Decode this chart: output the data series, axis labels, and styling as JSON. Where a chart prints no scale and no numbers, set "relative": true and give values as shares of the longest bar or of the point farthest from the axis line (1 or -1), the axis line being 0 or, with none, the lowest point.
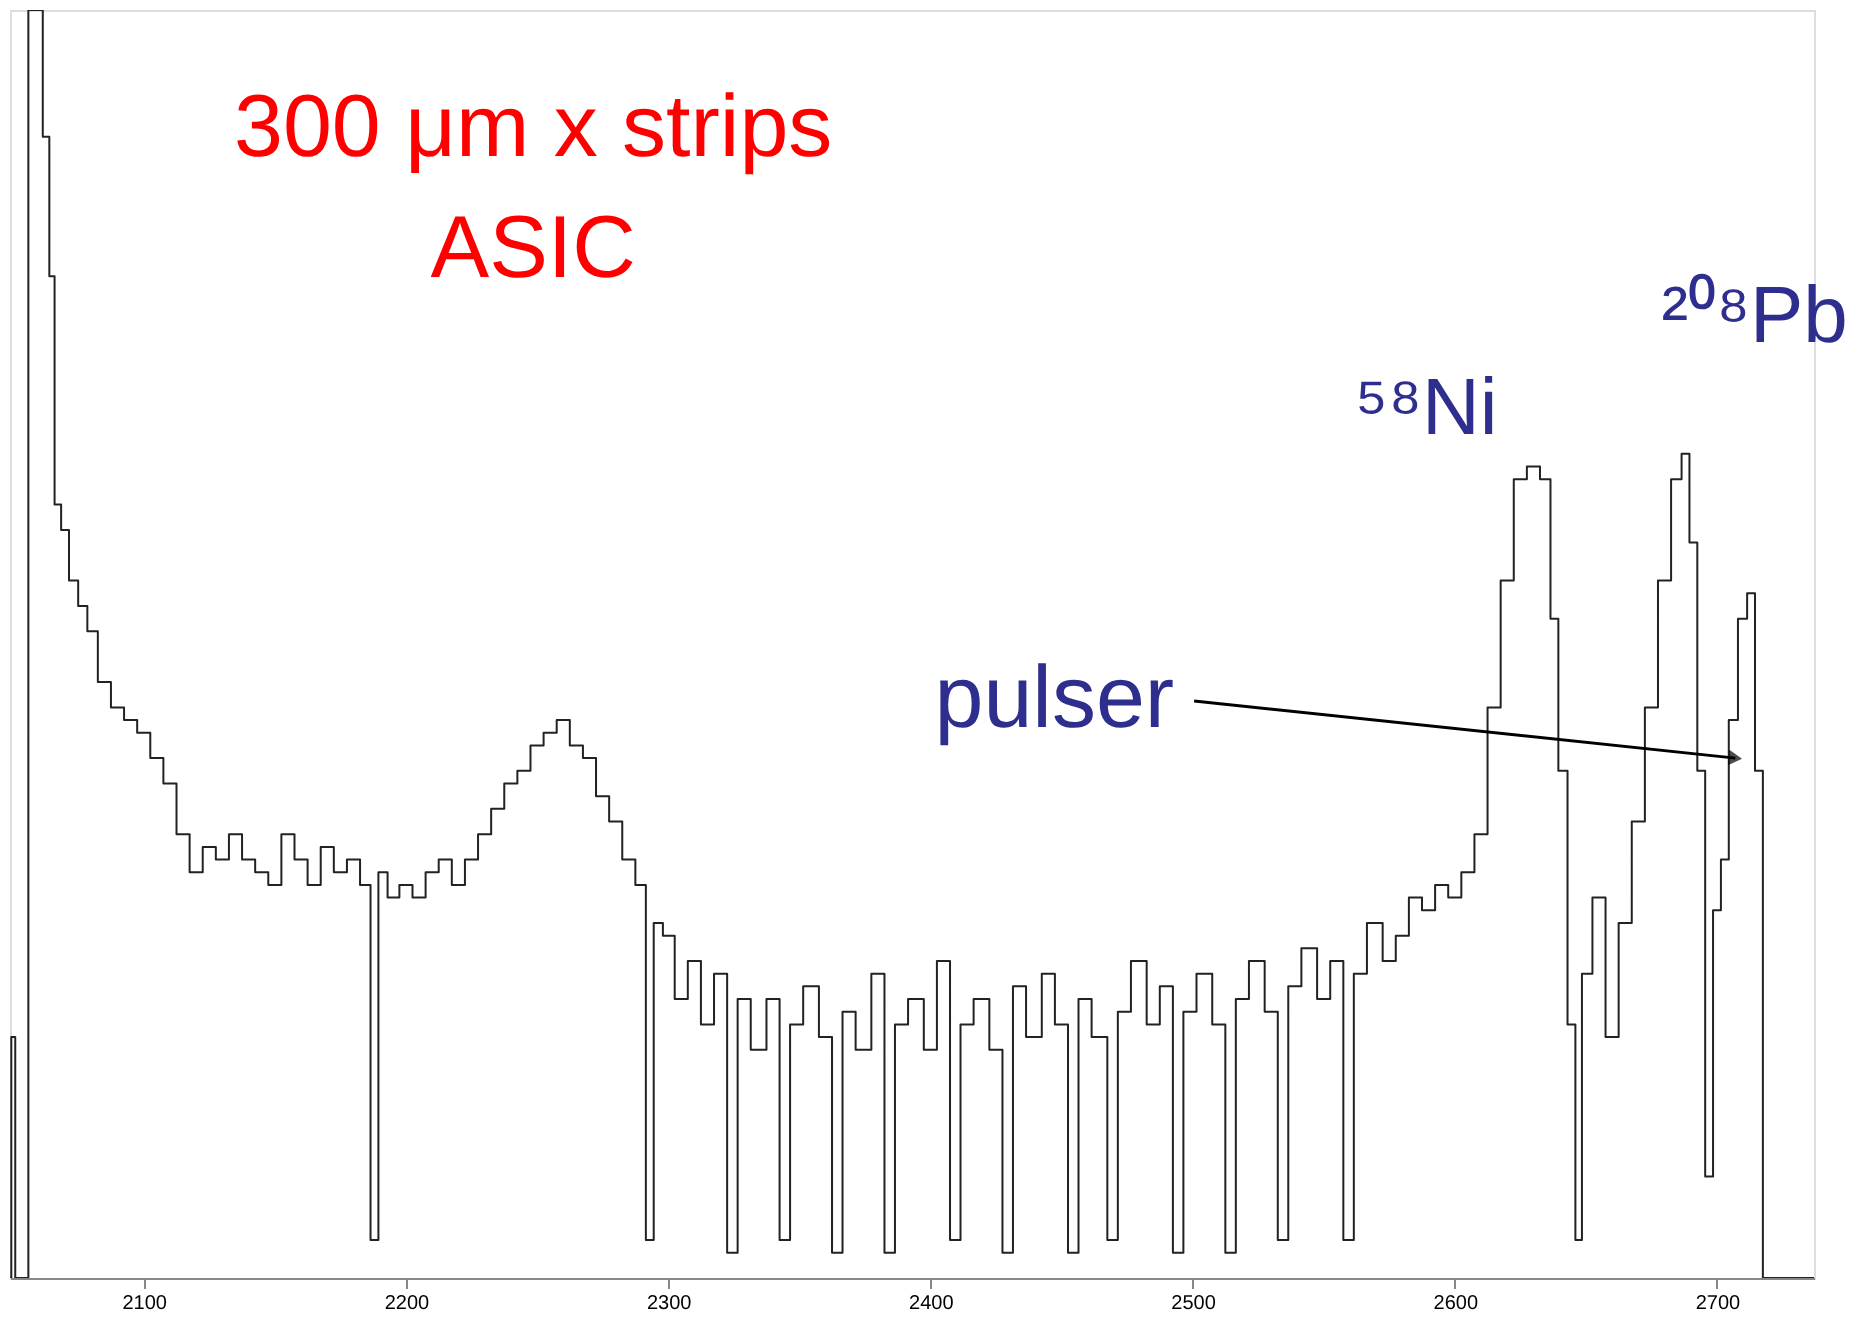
{
  "chart_data": {
    "type": "step",
    "relative": true,
    "x": [
      2049,
      2050,
      2052,
      2055,
      2057,
      2060,
      2063,
      2065,
      2067,
      2070,
      2073,
      2077,
      2080,
      2085,
      2090,
      2095,
      2100,
      2105,
      2110,
      2115,
      2120,
      2125,
      2130,
      2135,
      2140,
      2145,
      2150,
      2155,
      2160,
      2165,
      2170,
      2175,
      2180,
      2185,
      2188,
      2191,
      2195,
      2200,
      2205,
      2210,
      2215,
      2220,
      2225,
      2230,
      2235,
      2240,
      2245,
      2250,
      2255,
      2260,
      2265,
      2270,
      2275,
      2280,
      2285,
      2290,
      2293,
      2296,
      2300,
      2305,
      2310,
      2315,
      2320,
      2325,
      2328,
      2335,
      2340,
      2345,
      2348,
      2355,
      2360,
      2365,
      2368,
      2375,
      2380,
      2385,
      2388,
      2395,
      2400,
      2405,
      2410,
      2413,
      2420,
      2425,
      2430,
      2433,
      2440,
      2445,
      2450,
      2455,
      2458,
      2465,
      2470,
      2473,
      2480,
      2485,
      2490,
      2495,
      2498,
      2505,
      2510,
      2515,
      2518,
      2525,
      2530,
      2535,
      2538,
      2545,
      2550,
      2555,
      2560,
      2563,
      2570,
      2575,
      2580,
      2585,
      2590,
      2595,
      2600,
      2605,
      2610,
      2615,
      2620,
      2625,
      2630,
      2635,
      2638,
      2641,
      2645,
      2647,
      2650,
      2655,
      2660,
      2665,
      2670,
      2675,
      2680,
      2685,
      2688,
      2691,
      2694,
      2697,
      2700,
      2703,
      2706,
      2710,
      2713,
      2716,
      2719,
      2737
    ],
    "series": [
      {
        "color": "#222222",
        "values": [
          0,
          0.19,
          0,
          0,
          1.0,
          1.0,
          0.9,
          0.79,
          0.61,
          0.59,
          0.55,
          0.53,
          0.51,
          0.47,
          0.45,
          0.44,
          0.43,
          0.41,
          0.39,
          0.35,
          0.32,
          0.34,
          0.33,
          0.35,
          0.33,
          0.32,
          0.31,
          0.35,
          0.33,
          0.31,
          0.34,
          0.32,
          0.33,
          0.31,
          0.03,
          0.32,
          0.3,
          0.31,
          0.3,
          0.32,
          0.33,
          0.31,
          0.33,
          0.35,
          0.37,
          0.39,
          0.4,
          0.42,
          0.43,
          0.44,
          0.42,
          0.41,
          0.38,
          0.36,
          0.33,
          0.31,
          0.03,
          0.28,
          0.27,
          0.22,
          0.25,
          0.2,
          0.24,
          0.02,
          0.22,
          0.18,
          0.22,
          0.03,
          0.2,
          0.23,
          0.19,
          0.02,
          0.21,
          0.18,
          0.24,
          0.02,
          0.2,
          0.22,
          0.18,
          0.25,
          0.03,
          0.2,
          0.22,
          0.18,
          0.02,
          0.23,
          0.19,
          0.24,
          0.2,
          0.02,
          0.22,
          0.19,
          0.03,
          0.21,
          0.25,
          0.2,
          0.23,
          0.02,
          0.21,
          0.24,
          0.2,
          0.02,
          0.22,
          0.25,
          0.21,
          0.03,
          0.23,
          0.26,
          0.22,
          0.25,
          0.03,
          0.24,
          0.28,
          0.25,
          0.27,
          0.3,
          0.29,
          0.31,
          0.3,
          0.32,
          0.35,
          0.45,
          0.55,
          0.63,
          0.64,
          0.63,
          0.52,
          0.4,
          0.2,
          0.03,
          0.24,
          0.3,
          0.19,
          0.28,
          0.36,
          0.45,
          0.55,
          0.63,
          0.65,
          0.58,
          0.4,
          0.08,
          0.29,
          0.33,
          0.44,
          0.52,
          0.54,
          0.4,
          0,
          0
        ]
      }
    ],
    "xlim": [
      2049,
      2737
    ],
    "xticks": [
      2100,
      2200,
      2300,
      2400,
      2500,
      2600,
      2700
    ],
    "tick_labels": "x",
    "grid": false,
    "annotations": [
      "300 μm x strips",
      "ASIC",
      {
        "text": "⁵⁸Ni",
        "x": 2630,
        "y": 0.64
      },
      {
        "text": "²⁰⁸Pb",
        "x": 2688,
        "y": 0.65
      },
      {
        "text": "pulser",
        "x": 2707,
        "y": 0.41
      }
    ]
  }
}
